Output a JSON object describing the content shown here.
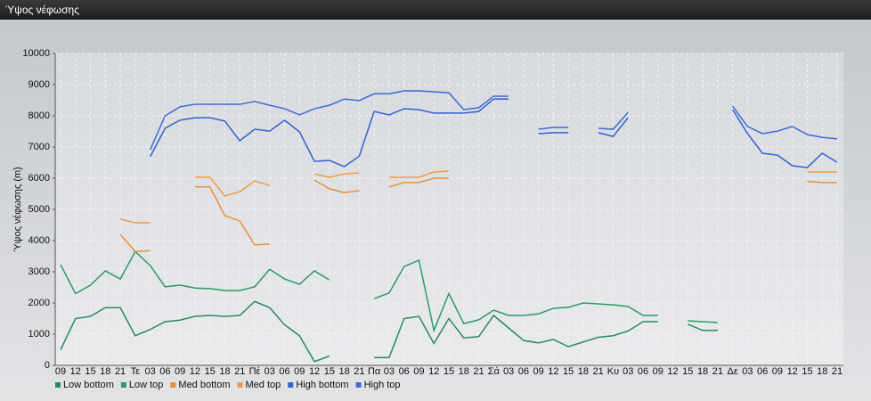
{
  "window_title": "Ύψος νέφωσης",
  "chart_data": {
    "type": "line",
    "ylabel": "Ύψος νέφωσης (m)",
    "categories": [
      "09",
      "12",
      "15",
      "18",
      "21",
      "Τε",
      "03",
      "06",
      "09",
      "12",
      "15",
      "18",
      "21",
      "Πέ",
      "03",
      "06",
      "09",
      "12",
      "15",
      "18",
      "21",
      "Πα",
      "03",
      "06",
      "09",
      "12",
      "15",
      "18",
      "21",
      "Σά",
      "03",
      "06",
      "09",
      "12",
      "15",
      "18",
      "21",
      "Κυ",
      "03",
      "06",
      "09",
      "12",
      "15",
      "18",
      "21",
      "Δε",
      "03",
      "06",
      "09",
      "12",
      "15",
      "18",
      "21"
    ],
    "ylim": [
      0,
      10000
    ],
    "yticks": [
      0,
      1000,
      2000,
      3000,
      4000,
      5000,
      6000,
      7000,
      8000,
      9000,
      10000
    ],
    "grid": true,
    "legend": "bottom",
    "series": [
      {
        "name": "Low bottom",
        "color": "#2b8a5c",
        "values": [
          500,
          1500,
          1570,
          1850,
          1850,
          950,
          1150,
          1400,
          1450,
          1570,
          1600,
          1570,
          1600,
          2050,
          1850,
          1300,
          950,
          120,
          300,
          null,
          null,
          250,
          250,
          1500,
          1570,
          700,
          1500,
          880,
          920,
          1600,
          1200,
          800,
          720,
          830,
          600,
          750,
          900,
          950,
          1100,
          1400,
          1400,
          null,
          1320,
          1120,
          1120,
          null,
          null,
          null,
          null,
          null,
          null,
          null,
          null
        ]
      },
      {
        "name": "Low top",
        "color": "#2f9a66",
        "values": [
          3230,
          2300,
          2570,
          3030,
          2770,
          3650,
          3200,
          2520,
          2570,
          2480,
          2460,
          2400,
          2400,
          2520,
          3080,
          2770,
          2600,
          3030,
          2740,
          null,
          null,
          2140,
          2320,
          3170,
          3370,
          1120,
          2300,
          1340,
          1460,
          1770,
          1600,
          1600,
          1650,
          1830,
          1860,
          2000,
          1970,
          1940,
          1890,
          1600,
          1600,
          null,
          1430,
          1400,
          1370,
          null,
          null,
          null,
          null,
          null,
          null,
          null,
          null
        ]
      },
      {
        "name": "Med bottom",
        "color": "#e8913a",
        "values": [
          null,
          null,
          null,
          null,
          4200,
          3650,
          3680,
          null,
          null,
          5720,
          5720,
          4800,
          4630,
          3860,
          3890,
          null,
          null,
          5940,
          5660,
          5540,
          5600,
          null,
          5720,
          5860,
          5860,
          6000,
          6000,
          null,
          null,
          null,
          null,
          null,
          null,
          null,
          null,
          null,
          null,
          null,
          null,
          null,
          null,
          null,
          null,
          null,
          null,
          null,
          null,
          null,
          null,
          null,
          5900,
          5860,
          5860
        ]
      },
      {
        "name": "Med top",
        "color": "#ee9a45",
        "values": [
          null,
          null,
          null,
          null,
          4690,
          4570,
          4570,
          null,
          null,
          6030,
          6030,
          5430,
          5570,
          5910,
          5770,
          null,
          null,
          6140,
          6030,
          6140,
          6170,
          null,
          6030,
          6030,
          6030,
          6200,
          6230,
          null,
          null,
          null,
          null,
          null,
          null,
          null,
          null,
          null,
          null,
          null,
          null,
          null,
          null,
          null,
          null,
          null,
          null,
          null,
          null,
          null,
          null,
          null,
          6200,
          6200,
          6200
        ]
      },
      {
        "name": "High bottom",
        "color": "#3560cf",
        "values": [
          null,
          null,
          null,
          null,
          null,
          null,
          6690,
          7600,
          7860,
          7940,
          7940,
          7830,
          7200,
          7570,
          7510,
          7860,
          7490,
          6540,
          6570,
          6370,
          6710,
          8140,
          8030,
          8230,
          8200,
          8090,
          8090,
          8090,
          8140,
          8540,
          8540,
          null,
          7430,
          7460,
          7460,
          null,
          7460,
          7340,
          7940,
          null,
          null,
          null,
          null,
          null,
          null,
          8200,
          7430,
          6800,
          6740,
          6400,
          6340,
          6800,
          6510
        ]
      },
      {
        "name": "High top",
        "color": "#3f6ad8",
        "values": [
          null,
          null,
          null,
          null,
          null,
          null,
          6910,
          8000,
          8290,
          8370,
          8370,
          8370,
          8370,
          8460,
          8340,
          8230,
          8030,
          8230,
          8340,
          8540,
          8490,
          8710,
          8710,
          8800,
          8800,
          8770,
          8740,
          8200,
          8260,
          8630,
          8630,
          null,
          7570,
          7630,
          7630,
          null,
          7600,
          7570,
          8110,
          null,
          null,
          null,
          null,
          null,
          null,
          8310,
          7660,
          7430,
          7510,
          7660,
          7400,
          7310,
          7260
        ]
      }
    ]
  }
}
